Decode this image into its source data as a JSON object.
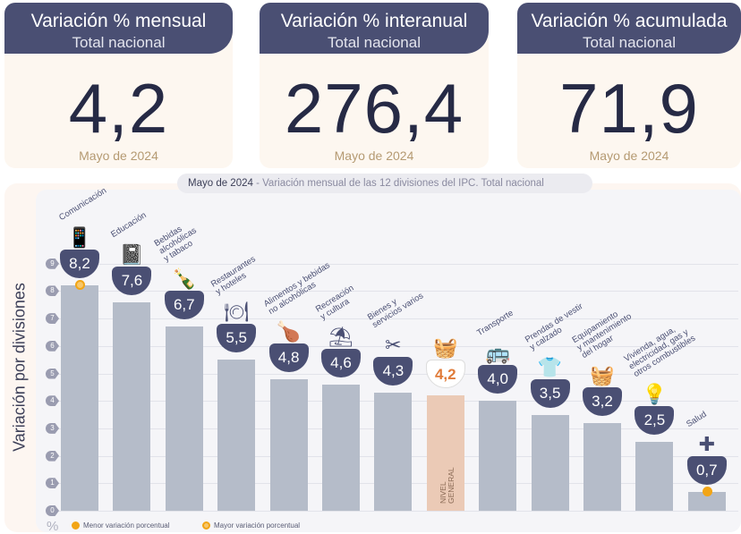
{
  "cards": [
    {
      "title": "Variación % mensual",
      "subtitle": "Total nacional",
      "value": "4,2",
      "date": "Mayo de 2024"
    },
    {
      "title": "Variación % interanual",
      "subtitle": "Total nacional",
      "value": "276,4",
      "date": "Mayo de 2024"
    },
    {
      "title": "Variación % acumulada",
      "subtitle": "Total nacional",
      "value": "71,9",
      "date": "Mayo de 2024"
    }
  ],
  "chart_data": {
    "type": "bar",
    "title_date": "Mayo de 2024",
    "title": " - Variación mensual de las 12 divisiones del IPC. Total nacional",
    "ylabel": "Variación por divisiones",
    "yunit": "%",
    "ylim": [
      0,
      9
    ],
    "yticks": [
      "0",
      "1",
      "2",
      "3",
      "4",
      "5",
      "6",
      "7",
      "8",
      "9"
    ],
    "categories": [
      "Comunicación",
      "Educación",
      "Bebidas\nalcohólicas\ny tabaco",
      "Restaurantes\ny hoteles",
      "Alimentos y bebidas\nno alcohólicas",
      "Recreación\ny cultura",
      "Bienes y\nservicios varios",
      "",
      "Transporte",
      "Prendas de vestir\ny calzado",
      "Equipamiento\ny mantenimiento\ndel hogar",
      "Vivienda, agua,\nelectricidad, gas y\notros combustibles",
      "Salud"
    ],
    "values": [
      8.2,
      7.6,
      6.7,
      5.5,
      4.8,
      4.6,
      4.3,
      4.2,
      4.0,
      3.5,
      3.2,
      2.5,
      0.7
    ],
    "value_labels": [
      "8,2",
      "7,6",
      "6,7",
      "5,5",
      "4,8",
      "4,6",
      "4,3",
      "4,2",
      "4,0",
      "3,5",
      "3,2",
      "2,5",
      "0,7"
    ],
    "icons": [
      "phone-icon",
      "notebook-icon",
      "bottles-icon",
      "plate-icon",
      "food-icon",
      "umbrella-icon",
      "comb-icon",
      "basket-icon",
      "bus-card-icon",
      "shirt-icon",
      "washer-icon",
      "bulb-icon",
      "medical-cross-icon"
    ],
    "general_index": 7,
    "general_label": "NIVEL\nGENERAL",
    "max_index": 0,
    "min_index": 12,
    "legend": [
      "Menor variación porcentual",
      "Mayor variación porcentual"
    ],
    "colors": {
      "bar": "#b5bcc9",
      "general": "#ebcab6",
      "badge": "#4a4f73",
      "highlight": "#e07b39",
      "marker": "#f2a516"
    }
  }
}
